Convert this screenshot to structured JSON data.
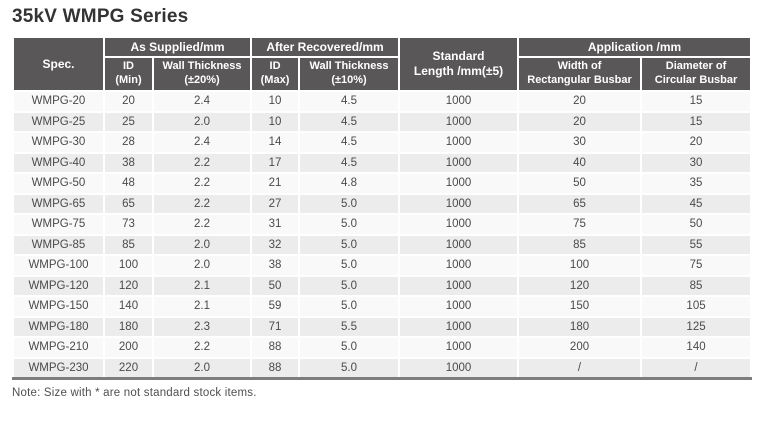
{
  "title": "35kV WMPG Series",
  "note": "Note: Size with * are not standard stock items.",
  "colors": {
    "header_bg": "#5a5758",
    "header_text": "#ffffff",
    "row_light": "#f9f9f9",
    "row_dark": "#ececec",
    "body_text": "#4a4a4a",
    "bottom_border": "#7d7d7d",
    "title_text": "#333333"
  },
  "table": {
    "header": {
      "spec": "Spec.",
      "standard_length": "Standard\nLength /mm(±5)",
      "groups": [
        {
          "label": "As Supplied/mm",
          "subs": [
            "ID\n(Min)",
            "Wall Thickness\n(±20%)"
          ]
        },
        {
          "label": "After Recovered/mm",
          "subs": [
            "ID\n(Max)",
            "Wall Thickness\n(±10%)"
          ]
        },
        {
          "label": "Application /mm",
          "subs": [
            "Width of\nRectangular Busbar",
            "Diameter of\nCircular Busbar"
          ]
        }
      ]
    },
    "rows": [
      {
        "spec": "WMPG-20",
        "values": [
          "20",
          "2.4",
          "10",
          "4.5",
          "1000",
          "20",
          "15"
        ]
      },
      {
        "spec": "WMPG-25",
        "values": [
          "25",
          "2.0",
          "10",
          "4.5",
          "1000",
          "20",
          "15"
        ]
      },
      {
        "spec": "WMPG-30",
        "values": [
          "28",
          "2.4",
          "14",
          "4.5",
          "1000",
          "30",
          "20"
        ]
      },
      {
        "spec": "WMPG-40",
        "values": [
          "38",
          "2.2",
          "17",
          "4.5",
          "1000",
          "40",
          "30"
        ]
      },
      {
        "spec": "WMPG-50",
        "values": [
          "48",
          "2.2",
          "21",
          "4.8",
          "1000",
          "50",
          "35"
        ]
      },
      {
        "spec": "WMPG-65",
        "values": [
          "65",
          "2.2",
          "27",
          "5.0",
          "1000",
          "65",
          "45"
        ]
      },
      {
        "spec": "WMPG-75",
        "values": [
          "73",
          "2.2",
          "31",
          "5.0",
          "1000",
          "75",
          "50"
        ]
      },
      {
        "spec": "WMPG-85",
        "values": [
          "85",
          "2.0",
          "32",
          "5.0",
          "1000",
          "85",
          "55"
        ]
      },
      {
        "spec": "WMPG-100",
        "values": [
          "100",
          "2.0",
          "38",
          "5.0",
          "1000",
          "100",
          "75"
        ]
      },
      {
        "spec": "WMPG-120",
        "values": [
          "120",
          "2.1",
          "50",
          "5.0",
          "1000",
          "120",
          "85"
        ]
      },
      {
        "spec": "WMPG-150",
        "values": [
          "140",
          "2.1",
          "59",
          "5.0",
          "1000",
          "150",
          "105"
        ]
      },
      {
        "spec": "WMPG-180",
        "values": [
          "180",
          "2.3",
          "71",
          "5.5",
          "1000",
          "180",
          "125"
        ]
      },
      {
        "spec": "WMPG-210",
        "values": [
          "200",
          "2.2",
          "88",
          "5.0",
          "1000",
          "200",
          "140"
        ]
      },
      {
        "spec": "WMPG-230",
        "values": [
          "220",
          "2.0",
          "88",
          "5.0",
          "1000",
          "/",
          "/"
        ]
      }
    ]
  }
}
